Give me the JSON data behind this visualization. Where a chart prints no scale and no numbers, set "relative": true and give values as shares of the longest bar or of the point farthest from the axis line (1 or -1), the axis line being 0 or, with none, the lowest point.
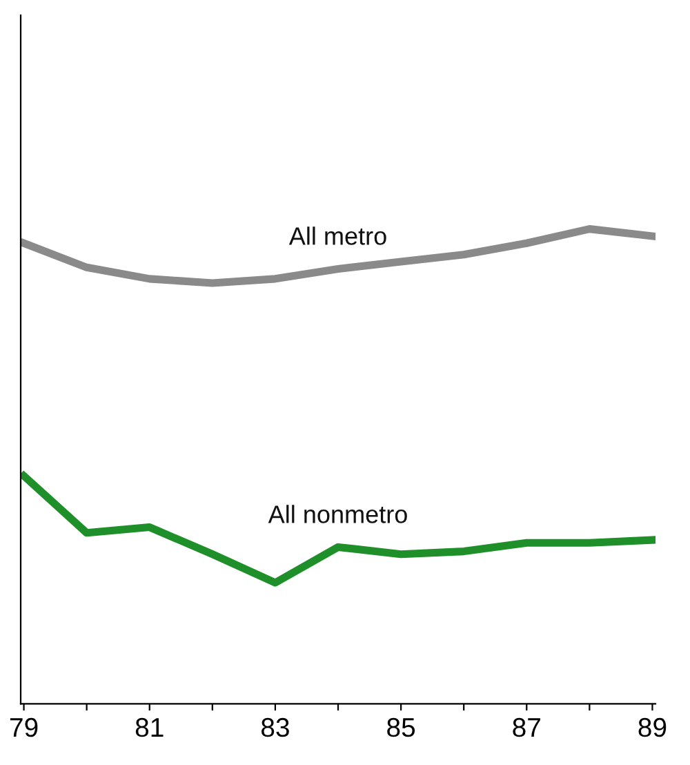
{
  "chart_data": {
    "type": "line",
    "relative": true,
    "categories": [
      "79",
      null,
      "81",
      null,
      "83",
      null,
      "85",
      null,
      "87",
      null,
      "89"
    ],
    "series": [
      {
        "name": "All metro",
        "color": "#8a8a8a",
        "values": [
          0.97,
          0.919,
          0.895,
          0.886,
          0.895,
          0.916,
          0.931,
          0.946,
          0.97,
          1,
          0.985
        ]
      },
      {
        "name": "All nonmetro",
        "color": "#1f8f2a",
        "values": [
          0.48,
          0.36,
          0.372,
          0.315,
          0.255,
          0.33,
          0.315,
          0.321,
          0.339,
          0.339,
          0.345
        ]
      }
    ],
    "grid": false,
    "legend": false,
    "marker": "none",
    "line_style": "solid"
  }
}
